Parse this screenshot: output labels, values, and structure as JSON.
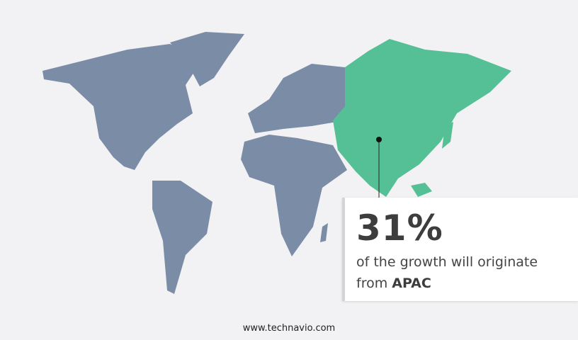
{
  "colors": {
    "background": "#f2f2f4",
    "other_regions": "#7a8ca6",
    "highlight_region": "#55c095",
    "text": "#3d3d3d"
  },
  "map": {
    "highlighted_region": "APAC"
  },
  "callout": {
    "percent": "31%",
    "text": "of the growth will originate",
    "prefix": "from",
    "region": "APAC"
  },
  "footer": {
    "url": "www.technavio.com"
  }
}
